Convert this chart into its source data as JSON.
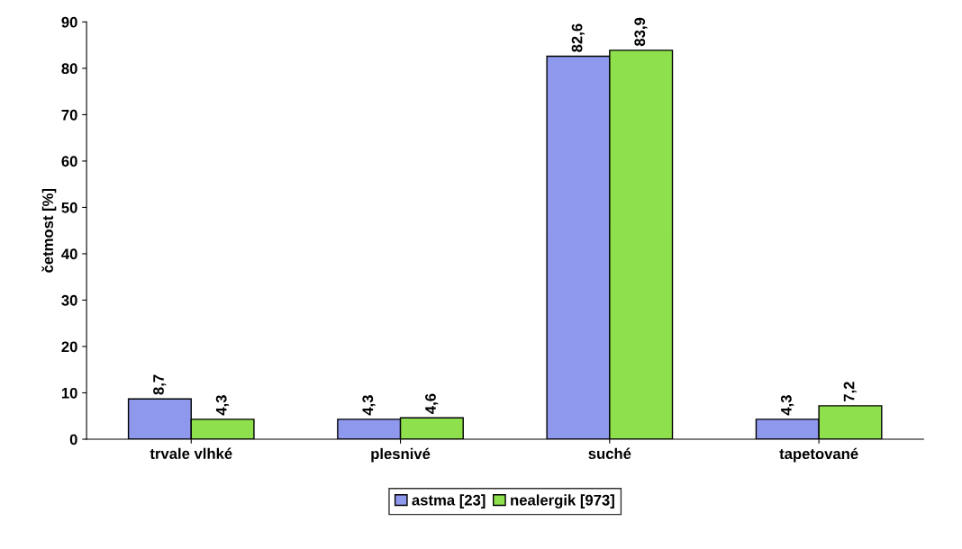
{
  "chart_data": {
    "type": "bar",
    "ylabel": "četmost [%]",
    "categories": [
      "trvale vlhké",
      "plesnivé",
      "suché",
      "tapetované"
    ],
    "series": [
      {
        "name": "astma [23]",
        "color": "#8e98ec",
        "values": [
          8.7,
          4.3,
          82.6,
          4.3
        ],
        "value_labels": [
          "8,7",
          "4,3",
          "82,6",
          "4,3"
        ]
      },
      {
        "name": "nealergik [973]",
        "color": "#8ee04c",
        "values": [
          4.3,
          4.6,
          83.9,
          7.2
        ],
        "value_labels": [
          "4,3",
          "4,6",
          "83,9",
          "7,2"
        ]
      }
    ],
    "ylim": [
      0,
      90
    ],
    "yticks": [
      0,
      10,
      20,
      30,
      40,
      50,
      60,
      70,
      80,
      90
    ],
    "grid": false,
    "legend": "bottom"
  }
}
